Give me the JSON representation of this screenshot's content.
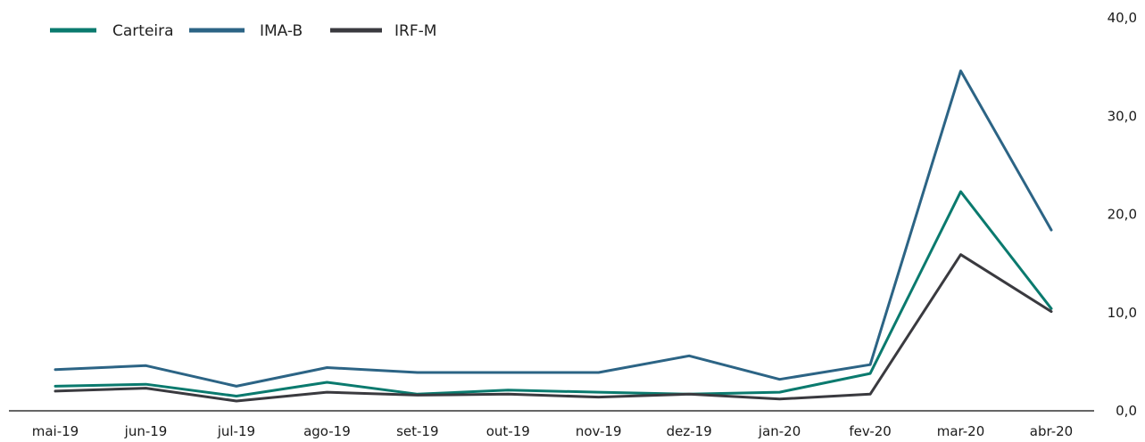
{
  "colors": {
    "carteira": "#0a7a6e",
    "ima_b": "#2c6485",
    "irf_m": "#3a3a3f",
    "axis": "#333333"
  },
  "chart_data": {
    "type": "line",
    "title": "",
    "xlabel": "",
    "ylabel": "",
    "categories": [
      "mai-19",
      "jun-19",
      "jul-19",
      "ago-19",
      "set-19",
      "out-19",
      "nov-19",
      "dez-19",
      "jan-20",
      "fev-20",
      "mar-20",
      "abr-20"
    ],
    "ylim": [
      0,
      40
    ],
    "y_ticks": [
      "0,0",
      "10,0",
      "20,0",
      "30,0",
      "40,0"
    ],
    "y_tick_values": [
      0,
      10,
      20,
      30,
      40
    ],
    "y_axis_position": "right",
    "grid": false,
    "legend_position": "top-left",
    "series": [
      {
        "name": "Carteira",
        "color_key": "carteira",
        "values": [
          2.5,
          2.7,
          1.5,
          2.9,
          1.7,
          2.1,
          1.9,
          1.7,
          1.9,
          3.8,
          22.3,
          10.4
        ]
      },
      {
        "name": "IMA-B",
        "color_key": "ima_b",
        "values": [
          4.2,
          4.6,
          2.5,
          4.4,
          3.9,
          3.9,
          3.9,
          5.6,
          3.2,
          4.7,
          34.6,
          18.4
        ]
      },
      {
        "name": "IRF-M",
        "color_key": "irf_m",
        "values": [
          2.0,
          2.3,
          1.0,
          1.9,
          1.6,
          1.7,
          1.4,
          1.7,
          1.2,
          1.7,
          15.9,
          10.1
        ]
      }
    ]
  }
}
